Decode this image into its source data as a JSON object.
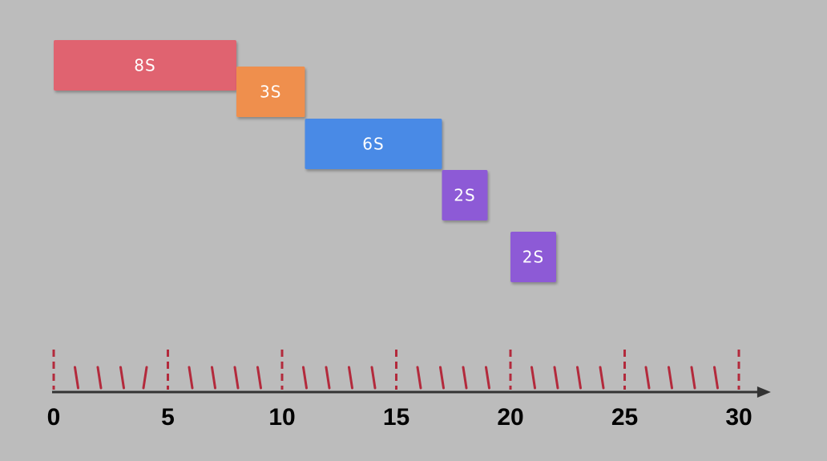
{
  "colors": {
    "background": "#bcbcbc",
    "axis": "#333333",
    "tick": "#b32a3c",
    "label": "#000000"
  },
  "timeline": {
    "start": 0,
    "end": 30,
    "arrow_end": 31.4,
    "major_step": 5,
    "minor_step": 1,
    "tick_labels": [
      "0",
      "5",
      "10",
      "15",
      "20",
      "25",
      "30"
    ]
  },
  "tasks": [
    {
      "label": "8S",
      "start": 0,
      "duration": 8,
      "lane": 0,
      "color": "#e0636f"
    },
    {
      "label": "3S",
      "start": 8,
      "duration": 3,
      "lane": 1,
      "color": "#ef8f4e"
    },
    {
      "label": "6S",
      "start": 11,
      "duration": 6,
      "lane": 2,
      "color": "#4a8ae6"
    },
    {
      "label": "2S",
      "start": 17,
      "duration": 2,
      "lane": 3,
      "color": "#8d5ad6"
    },
    {
      "label": "2S",
      "start": 20,
      "duration": 2,
      "lane": 4,
      "color": "#8d5ad6"
    }
  ]
}
